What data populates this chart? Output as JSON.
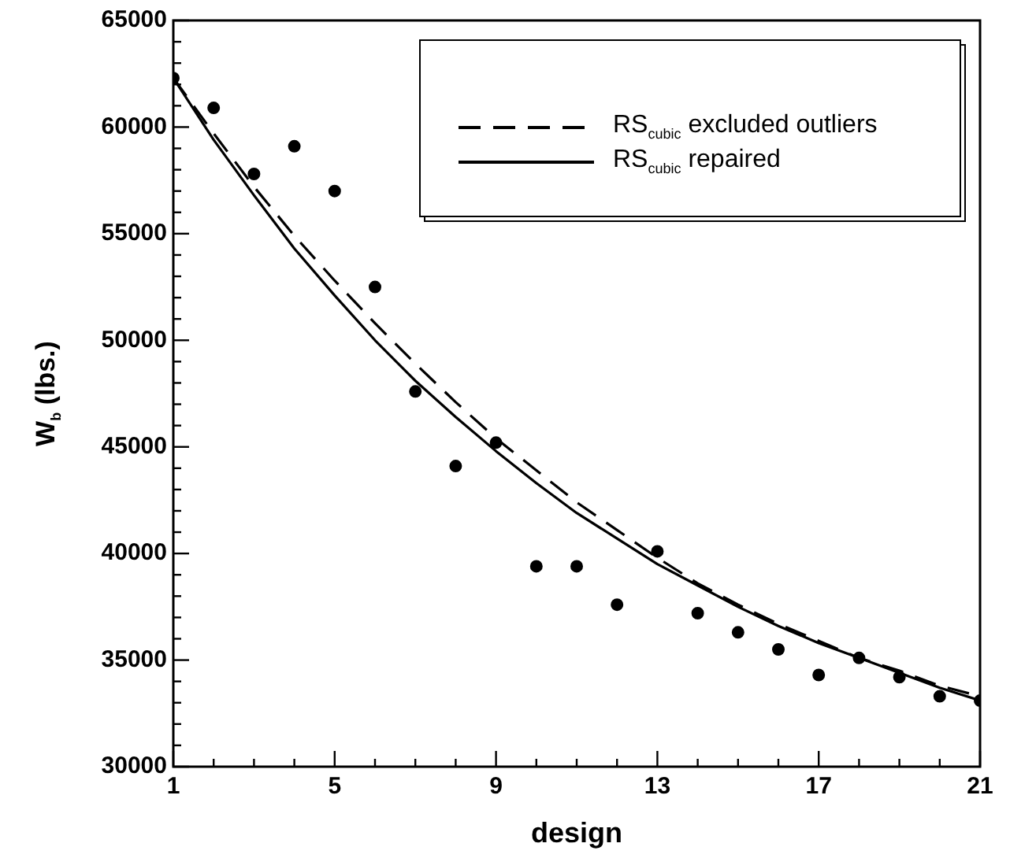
{
  "chart_data": {
    "type": "line",
    "xlabel": "design",
    "ylabel": "W$_{b}$ (lbs.)",
    "x": [
      1,
      2,
      3,
      4,
      5,
      6,
      7,
      8,
      9,
      10,
      11,
      12,
      13,
      14,
      15,
      16,
      17,
      18,
      19,
      20,
      21
    ],
    "xlim": [
      1,
      21
    ],
    "xticks": [
      1,
      {
        "value": 2,
        "label": null
      },
      {
        "value": 3,
        "label": null
      },
      {
        "value": 4,
        "label": null
      },
      5,
      {
        "value": 6,
        "label": null
      },
      {
        "value": 7,
        "label": null
      },
      {
        "value": 8,
        "label": null
      },
      9,
      {
        "value": 10,
        "label": null
      },
      {
        "value": 11,
        "label": null
      },
      {
        "value": 12,
        "label": null
      },
      13,
      {
        "value": 14,
        "label": null
      },
      {
        "value": 15,
        "label": null
      },
      {
        "value": 16,
        "label": null
      },
      17,
      {
        "value": 18,
        "label": null
      },
      {
        "value": 19,
        "label": null
      },
      {
        "value": 20,
        "label": null
      },
      21
    ],
    "ylim": [
      30000,
      65000
    ],
    "yticks": [
      30000,
      {
        "value": 31000,
        "label": null
      },
      {
        "value": 32000,
        "label": null
      },
      {
        "value": 33000,
        "label": null
      },
      {
        "value": 34000,
        "label": null
      },
      35000,
      {
        "value": 36000,
        "label": null
      },
      {
        "value": 37000,
        "label": null
      },
      {
        "value": 38000,
        "label": null
      },
      {
        "value": 39000,
        "label": null
      },
      40000,
      {
        "value": 41000,
        "label": null
      },
      {
        "value": 42000,
        "label": null
      },
      {
        "value": 43000,
        "label": null
      },
      {
        "value": 44000,
        "label": null
      },
      45000,
      {
        "value": 46000,
        "label": null
      },
      {
        "value": 47000,
        "label": null
      },
      {
        "value": 48000,
        "label": null
      },
      {
        "value": 49000,
        "label": null
      },
      50000,
      {
        "value": 51000,
        "label": null
      },
      {
        "value": 52000,
        "label": null
      },
      {
        "value": 53000,
        "label": null
      },
      {
        "value": 54000,
        "label": null
      },
      55000,
      {
        "value": 56000,
        "label": null
      },
      {
        "value": 57000,
        "label": null
      },
      {
        "value": 58000,
        "label": null
      },
      {
        "value": 59000,
        "label": null
      },
      60000,
      {
        "value": 61000,
        "label": null
      },
      {
        "value": 62000,
        "label": null
      },
      {
        "value": 63000,
        "label": null
      },
      {
        "value": 64000,
        "label": null
      },
      65000
    ],
    "legend": "top right",
    "grid": false,
    "series": [
      {
        "type": "scatter",
        "marker": "circle",
        "color": "#000000",
        "values": [
          62300,
          60900,
          57800,
          59100,
          57000,
          52500,
          47600,
          44100,
          45200,
          39400,
          39400,
          37600,
          40100,
          37200,
          36300,
          35500,
          34300,
          35100,
          34200,
          33300,
          33100
        ]
      },
      {
        "name": "RS$_{cubic}$ excluded outliers",
        "line_style": "dashed",
        "marker": "none",
        "color": "#000000",
        "values": [
          62300,
          59700,
          57200,
          54900,
          52800,
          50800,
          48900,
          47100,
          45400,
          43900,
          42400,
          41100,
          39800,
          38600,
          37600,
          36700,
          35900,
          35100,
          34500,
          33800,
          33300
        ]
      },
      {
        "name": "RS$_{cubic}$ repaired",
        "line_style": "solid",
        "marker": "none",
        "color": "#000000",
        "values": [
          62300,
          59400,
          56800,
          54300,
          52100,
          50000,
          48100,
          46400,
          44800,
          43300,
          41900,
          40700,
          39500,
          38500,
          37500,
          36600,
          35800,
          35100,
          34400,
          33700,
          33100
        ]
      }
    ]
  }
}
